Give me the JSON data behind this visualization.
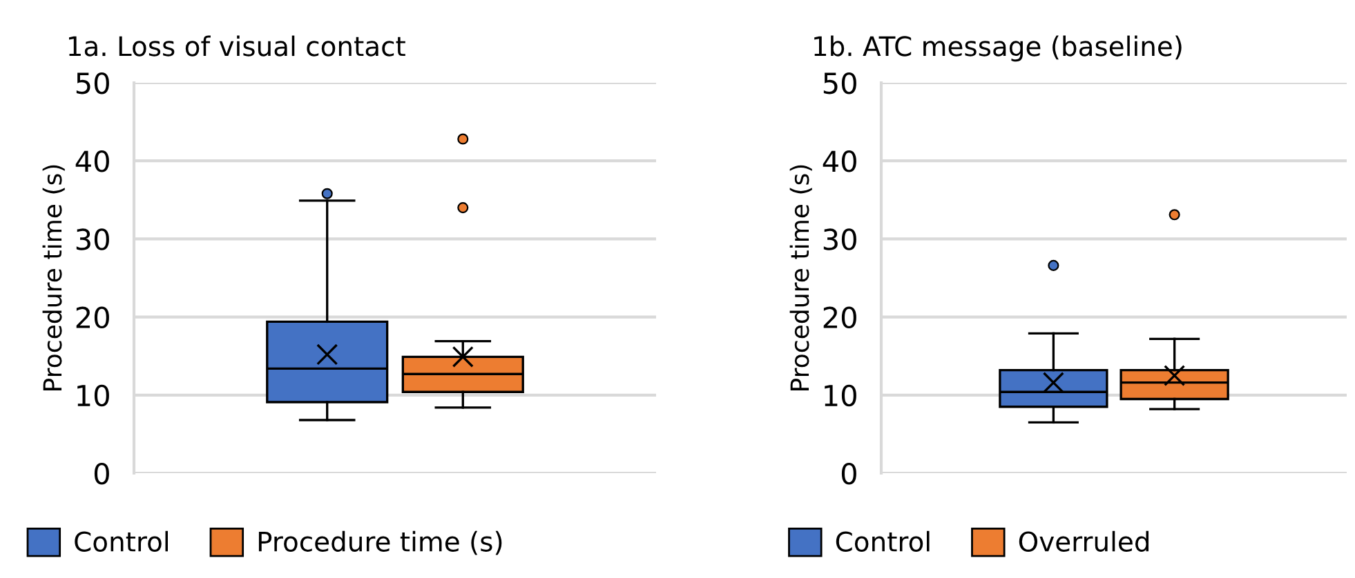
{
  "chart_data": [
    {
      "type": "box",
      "title": "1a. Loss of visual contact",
      "ylabel": "Procedure time (s)",
      "categories": [
        null
      ],
      "ylim": [
        0,
        50
      ],
      "yticks": [
        0,
        10,
        20,
        30,
        40,
        50
      ],
      "grid": "y",
      "legend": "bottom",
      "series": [
        {
          "name": "Control",
          "color": "#4472c4",
          "boxes": [
            {
              "low": 6.8,
              "q1": 9.1,
              "median": 13.4,
              "q3": 19.4,
              "high": 34.9,
              "mean": 15.2,
              "outliers": [
                35.8
              ]
            }
          ]
        },
        {
          "name": "Procedure time (s)",
          "color": "#ed7d31",
          "boxes": [
            {
              "low": 8.4,
              "q1": 10.4,
              "median": 12.7,
              "q3": 14.9,
              "high": 16.9,
              "mean": 14.9,
              "outliers": [
                34.0,
                42.8
              ]
            }
          ]
        }
      ]
    },
    {
      "type": "box",
      "title": "1b. ATC message (baseline)",
      "ylabel": "Procedure time (s)",
      "categories": [
        null
      ],
      "ylim": [
        0,
        50
      ],
      "yticks": [
        0,
        10,
        20,
        30,
        40,
        50
      ],
      "grid": "y",
      "legend": "bottom",
      "series": [
        {
          "name": "Control",
          "color": "#4472c4",
          "boxes": [
            {
              "low": 6.5,
              "q1": 8.5,
              "median": 10.4,
              "q3": 13.2,
              "high": 17.9,
              "mean": 11.6,
              "outliers": [
                26.6
              ]
            }
          ]
        },
        {
          "name": "Overruled",
          "color": "#ed7d31",
          "boxes": [
            {
              "low": 8.2,
              "q1": 9.5,
              "median": 11.6,
              "q3": 13.2,
              "high": 17.2,
              "mean": 12.5,
              "outliers": [
                33.1
              ]
            }
          ]
        }
      ]
    }
  ]
}
